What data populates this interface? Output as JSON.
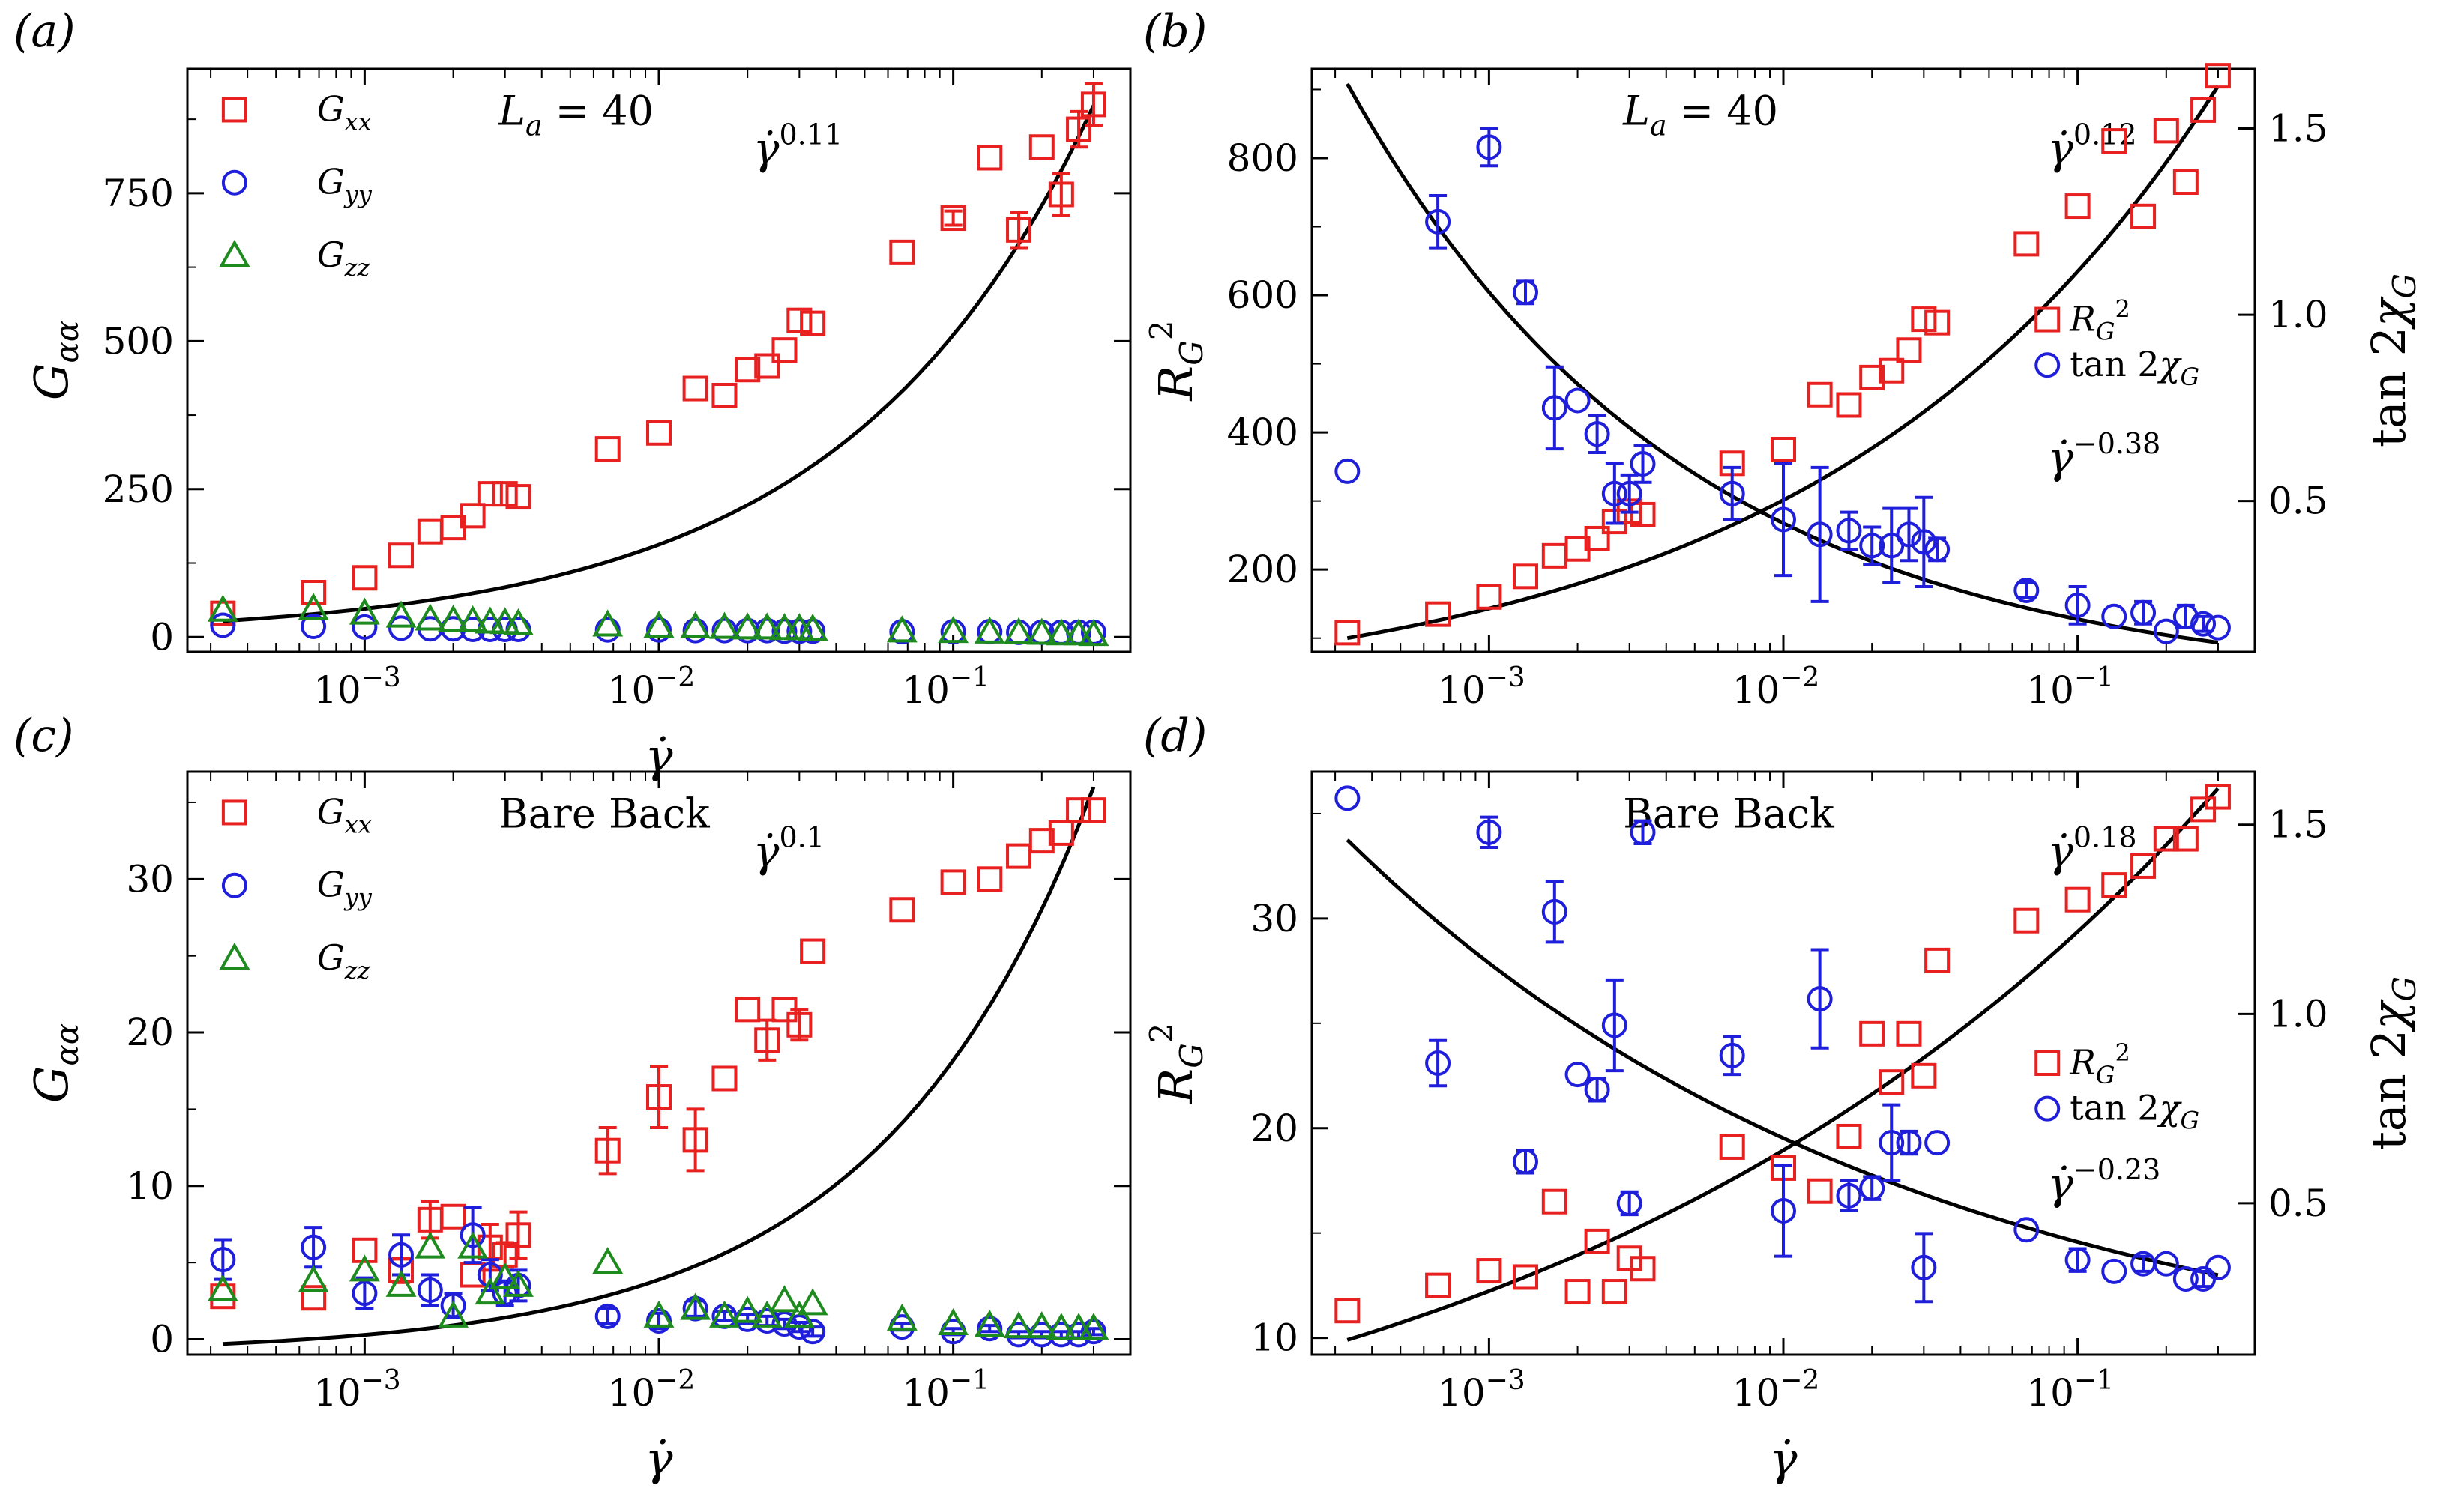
{
  "chart_data": [
    {
      "panel": "(a)",
      "type": "scatter",
      "title": "",
      "annotation": "L_a = 40",
      "xlabel": "γ̇",
      "ylabel": "G_αα",
      "xscale": "log",
      "xlim": [
        0.00025,
        0.4
      ],
      "ylim": [
        -25,
        960
      ],
      "xticks": [
        0.001,
        0.01,
        0.1
      ],
      "xtick_labels": [
        "10^-3",
        "10^-2",
        "10^-1"
      ],
      "yticks": [
        0,
        250,
        500,
        750
      ],
      "ytick_labels": [
        "0",
        "250",
        "500",
        "750"
      ],
      "fit": {
        "label": "γ̇^0.11",
        "exponent": "0.11",
        "x": [
          0.00033,
          0.3
        ],
        "y": [
          27,
          898
        ]
      },
      "series": [
        {
          "name": "G_xx",
          "marker": "square",
          "color": "#e8201f",
          "x": [
            0.00033,
            0.00067,
            0.001,
            0.00133,
            0.00167,
            0.002,
            0.00233,
            0.00267,
            0.003,
            0.00333,
            0.0067,
            0.01,
            0.0133,
            0.0167,
            0.02,
            0.0233,
            0.0267,
            0.03,
            0.0333,
            0.067,
            0.1,
            0.133,
            0.167,
            0.2,
            0.233,
            0.267,
            0.3
          ],
          "y": [
            40,
            75,
            100,
            138,
            178,
            185,
            205,
            242,
            242,
            237,
            318,
            345,
            420,
            408,
            452,
            458,
            485,
            535,
            530,
            650,
            708,
            810,
            688,
            828,
            748,
            858,
            900
          ],
          "err": [
            0,
            0,
            0,
            0,
            0,
            0,
            0,
            0,
            0,
            0,
            0,
            0,
            0,
            0,
            0,
            0,
            0,
            0,
            0,
            0,
            12,
            0,
            30,
            0,
            35,
            30,
            35
          ]
        },
        {
          "name": "G_yy",
          "marker": "circle",
          "color": "#1f1fdb",
          "x": [
            0.00033,
            0.00067,
            0.001,
            0.00133,
            0.00167,
            0.002,
            0.00233,
            0.00267,
            0.003,
            0.00333,
            0.0067,
            0.01,
            0.0133,
            0.0167,
            0.02,
            0.0233,
            0.0267,
            0.03,
            0.0333,
            0.067,
            0.1,
            0.133,
            0.167,
            0.2,
            0.233,
            0.267,
            0.3
          ],
          "y": [
            20,
            18,
            17,
            15,
            14,
            14,
            13,
            13,
            13,
            13,
            12,
            12,
            11,
            11,
            11,
            11,
            10,
            10,
            10,
            9,
            9,
            9,
            8,
            8,
            8,
            8,
            8
          ]
        },
        {
          "name": "G_zz",
          "marker": "triangle",
          "color": "#1e8b1e",
          "x": [
            0.00033,
            0.00067,
            0.001,
            0.00133,
            0.00167,
            0.002,
            0.00233,
            0.00267,
            0.003,
            0.00333,
            0.0067,
            0.01,
            0.0133,
            0.0167,
            0.02,
            0.0233,
            0.0267,
            0.03,
            0.0333,
            0.067,
            0.1,
            0.133,
            0.167,
            0.2,
            0.233,
            0.267,
            0.3
          ],
          "y": [
            45,
            48,
            40,
            35,
            30,
            28,
            27,
            25,
            24,
            22,
            20,
            18,
            17,
            16,
            15,
            15,
            14,
            14,
            13,
            10,
            9,
            8,
            7,
            6,
            5,
            5,
            4
          ]
        }
      ]
    },
    {
      "panel": "(b)",
      "type": "scatter",
      "annotation": "L_a = 40",
      "xlabel": "",
      "ylabel": "R_G^2",
      "ylabel_right": "tan 2χ_G",
      "xscale": "log",
      "xlim": [
        0.00025,
        0.4
      ],
      "ylim": [
        80,
        930
      ],
      "ylim_right": [
        0.095,
        1.66
      ],
      "xticks": [
        0.001,
        0.01,
        0.1
      ],
      "xtick_labels": [
        "10^-3",
        "10^-2",
        "10^-1"
      ],
      "yticks": [
        200,
        400,
        600,
        800
      ],
      "ytick_labels": [
        "200",
        "400",
        "600",
        "800"
      ],
      "yticks_right": [
        0.5,
        1.0,
        1.5
      ],
      "ytick_labels_right": [
        "0.5",
        "1.0",
        "1.5"
      ],
      "fits": [
        {
          "label": "γ̇^0.12",
          "exponent": "0.12",
          "axis": "left",
          "x": [
            0.00033,
            0.3
          ],
          "y": [
            100,
            905
          ]
        },
        {
          "label": "γ̇^-0.38",
          "exponent": "−0.38",
          "axis": "right",
          "x": [
            0.00033,
            0.3
          ],
          "y": [
            1.62,
            0.12
          ]
        }
      ],
      "series": [
        {
          "name": "R_G^2",
          "axis": "left",
          "marker": "square",
          "color": "#e8201f",
          "x": [
            0.00033,
            0.00067,
            0.001,
            0.00133,
            0.00167,
            0.002,
            0.00233,
            0.00267,
            0.003,
            0.00333,
            0.0067,
            0.01,
            0.0133,
            0.0167,
            0.02,
            0.0233,
            0.0267,
            0.03,
            0.0333,
            0.067,
            0.1,
            0.133,
            0.167,
            0.2,
            0.233,
            0.267,
            0.3
          ],
          "y": [
            108,
            135,
            160,
            190,
            220,
            230,
            245,
            270,
            285,
            280,
            355,
            375,
            455,
            440,
            480,
            490,
            520,
            565,
            560,
            675,
            730,
            825,
            715,
            840,
            765,
            870,
            920
          ]
        },
        {
          "name": "tan 2χ_G",
          "axis": "right",
          "marker": "circle",
          "color": "#1f1fdb",
          "x": [
            0.00033,
            0.00067,
            0.001,
            0.00133,
            0.00167,
            0.002,
            0.00233,
            0.00267,
            0.003,
            0.00333,
            0.0067,
            0.01,
            0.0133,
            0.0167,
            0.02,
            0.0233,
            0.0267,
            0.03,
            0.0333,
            0.067,
            0.1,
            0.133,
            0.167,
            0.2,
            0.233,
            0.267,
            0.3
          ],
          "y": [
            0.58,
            1.25,
            1.45,
            1.06,
            0.75,
            0.77,
            0.68,
            0.52,
            0.52,
            0.6,
            0.52,
            0.45,
            0.41,
            0.42,
            0.38,
            0.38,
            0.41,
            0.39,
            0.37,
            0.26,
            0.22,
            0.19,
            0.2,
            0.15,
            0.19,
            0.17,
            0.16
          ],
          "err": [
            0,
            0.07,
            0.05,
            0.03,
            0.11,
            0,
            0.05,
            0.08,
            0.05,
            0.05,
            0.07,
            0.15,
            0.18,
            0.05,
            0.05,
            0.1,
            0.07,
            0.12,
            0.03,
            0.02,
            0.05,
            0,
            0.03,
            0,
            0.03,
            0.02,
            0
          ]
        }
      ]
    },
    {
      "panel": "(c)",
      "type": "scatter",
      "annotation": "Bare Back",
      "xlabel": "γ̇",
      "ylabel": "G_αα",
      "xscale": "log",
      "xlim": [
        0.00025,
        0.4
      ],
      "ylim": [
        -1,
        37
      ],
      "xticks": [
        0.001,
        0.01,
        0.1
      ],
      "xtick_labels": [
        "10^-3",
        "10^-2",
        "10^-1"
      ],
      "yticks": [
        0,
        10,
        20,
        30
      ],
      "ytick_labels": [
        "0",
        "10",
        "20",
        "30"
      ],
      "fit": {
        "label": "γ̇^0.1",
        "exponent": "0.1",
        "x": [
          0.00033,
          0.3
        ],
        "y": [
          -0.3,
          36
        ]
      },
      "series": [
        {
          "name": "G_xx",
          "marker": "square",
          "color": "#e8201f",
          "x": [
            0.00033,
            0.00067,
            0.001,
            0.00133,
            0.00167,
            0.002,
            0.00233,
            0.00267,
            0.003,
            0.00333,
            0.0067,
            0.01,
            0.0133,
            0.0167,
            0.02,
            0.0233,
            0.0267,
            0.03,
            0.0333,
            0.067,
            0.1,
            0.133,
            0.167,
            0.2,
            0.233,
            0.267,
            0.3
          ],
          "y": [
            2.8,
            2.7,
            5.8,
            4.5,
            7.8,
            8.0,
            4.2,
            6.0,
            5.5,
            6.8,
            12.3,
            15.8,
            13.0,
            17.0,
            21.5,
            19.5,
            21.5,
            20.5,
            25.3,
            28.0,
            29.8,
            30.0,
            31.5,
            32.5,
            33.0,
            34.5,
            34.5
          ],
          "err": [
            0,
            0,
            0,
            0.8,
            1.2,
            0,
            0,
            1.5,
            0.8,
            1.5,
            1.5,
            2.0,
            2.0,
            0,
            0,
            1.3,
            0,
            1.0,
            0,
            0,
            0,
            0,
            0,
            0,
            0,
            0,
            0
          ]
        },
        {
          "name": "G_yy",
          "marker": "circle",
          "color": "#1f1fdb",
          "x": [
            0.00033,
            0.00067,
            0.001,
            0.00133,
            0.00167,
            0.002,
            0.00233,
            0.00267,
            0.003,
            0.00333,
            0.0067,
            0.01,
            0.0133,
            0.0167,
            0.02,
            0.0233,
            0.0267,
            0.03,
            0.0333,
            0.067,
            0.1,
            0.133,
            0.167,
            0.2,
            0.233,
            0.267,
            0.3
          ],
          "y": [
            5.2,
            6.0,
            3.0,
            5.5,
            3.2,
            2.2,
            6.8,
            4.2,
            3.0,
            3.5,
            1.5,
            1.2,
            2.0,
            1.5,
            1.3,
            1.2,
            1.0,
            0.8,
            0.5,
            0.8,
            0.5,
            0.7,
            0.3,
            0.3,
            0.3,
            0.3,
            0.5
          ],
          "err": [
            1.3,
            1.3,
            1.0,
            1.3,
            1.0,
            0.8,
            1.8,
            1.0,
            0.8,
            1.0,
            0.5,
            0.5,
            0.5,
            0.3,
            0.3,
            0.3,
            0.3,
            0.3,
            0.3,
            0.2,
            0.2,
            0.2,
            0.2,
            0.2,
            0.2,
            0.2,
            0.2
          ]
        },
        {
          "name": "G_zz",
          "marker": "triangle",
          "color": "#1e8b1e",
          "x": [
            0.00033,
            0.00067,
            0.001,
            0.00133,
            0.00167,
            0.002,
            0.00233,
            0.00267,
            0.003,
            0.00333,
            0.0067,
            0.01,
            0.0133,
            0.0167,
            0.02,
            0.0233,
            0.0267,
            0.03,
            0.0333,
            0.067,
            0.1,
            0.133,
            0.167,
            0.2,
            0.233,
            0.267,
            0.3
          ],
          "y": [
            3.2,
            3.8,
            4.5,
            3.5,
            6.0,
            1.5,
            6.0,
            3.0,
            4.0,
            3.5,
            5.0,
            1.5,
            2.0,
            1.5,
            1.8,
            1.5,
            2.5,
            1.5,
            2.3,
            1.3,
            1.0,
            0.9,
            0.8,
            0.8,
            0.7,
            0.7,
            0.7
          ]
        }
      ]
    },
    {
      "panel": "(d)",
      "type": "scatter",
      "annotation": "Bare Back",
      "xlabel": "γ̇",
      "ylabel": "R_G^2",
      "ylabel_right": "tan 2χ_G",
      "xscale": "log",
      "xlim": [
        0.00025,
        0.4
      ],
      "ylim": [
        9.2,
        37
      ],
      "ylim_right": [
        0.1,
        1.64
      ],
      "xticks": [
        0.001,
        0.01,
        0.1
      ],
      "xtick_labels": [
        "10^-3",
        "10^-2",
        "10^-1"
      ],
      "yticks": [
        10,
        20,
        30
      ],
      "ytick_labels": [
        "10",
        "20",
        "30"
      ],
      "yticks_right": [
        0.5,
        1.0,
        1.5
      ],
      "ytick_labels_right": [
        "0.5",
        "1.0",
        "1.5"
      ],
      "fits": [
        {
          "label": "γ̇^0.18",
          "exponent": "0.18",
          "axis": "left",
          "x": [
            0.00033,
            0.3
          ],
          "y": [
            9.9,
            36.2
          ]
        },
        {
          "label": "γ̇^-0.23",
          "exponent": "−0.23",
          "axis": "right",
          "x": [
            0.00033,
            0.3
          ],
          "y": [
            1.46,
            0.31
          ]
        }
      ],
      "series": [
        {
          "name": "R_G^2",
          "axis": "left",
          "marker": "square",
          "color": "#e8201f",
          "x": [
            0.00033,
            0.00067,
            0.001,
            0.00133,
            0.00167,
            0.002,
            0.00233,
            0.00267,
            0.003,
            0.00333,
            0.0067,
            0.01,
            0.0133,
            0.0167,
            0.02,
            0.0233,
            0.0267,
            0.03,
            0.0333,
            0.067,
            0.1,
            0.133,
            0.167,
            0.2,
            0.233,
            0.267,
            0.3
          ],
          "y": [
            11.3,
            12.5,
            13.2,
            12.9,
            16.5,
            12.2,
            14.6,
            12.2,
            13.8,
            13.3,
            19.1,
            18.1,
            17.0,
            19.6,
            24.5,
            22.2,
            24.5,
            22.5,
            28.0,
            29.9,
            30.9,
            31.6,
            32.5,
            33.8,
            33.8,
            35.2,
            35.8
          ]
        },
        {
          "name": "tan 2χ_G",
          "axis": "right",
          "marker": "circle",
          "color": "#1f1fdb",
          "x": [
            0.00033,
            0.00067,
            0.001,
            0.00133,
            0.00167,
            0.002,
            0.00233,
            0.00267,
            0.003,
            0.00333,
            0.0067,
            0.01,
            0.0133,
            0.0167,
            0.02,
            0.0233,
            0.0267,
            0.03,
            0.0333,
            0.067,
            0.1,
            0.133,
            0.167,
            0.2,
            0.233,
            0.267,
            0.3
          ],
          "y": [
            1.57,
            0.87,
            1.48,
            0.61,
            1.27,
            0.84,
            0.8,
            0.97,
            0.5,
            1.48,
            0.89,
            0.48,
            1.04,
            0.52,
            0.54,
            0.66,
            0.66,
            0.33,
            0.66,
            0.43,
            0.35,
            0.32,
            0.34,
            0.34,
            0.3,
            0.3,
            0.33
          ],
          "err": [
            0,
            0.06,
            0.04,
            0.03,
            0.08,
            0,
            0.03,
            0.12,
            0.03,
            0.03,
            0.05,
            0.12,
            0.13,
            0.04,
            0.03,
            0.1,
            0.03,
            0.09,
            0,
            0,
            0.03,
            0,
            0.02,
            0,
            0,
            0.02,
            0
          ]
        }
      ]
    }
  ]
}
